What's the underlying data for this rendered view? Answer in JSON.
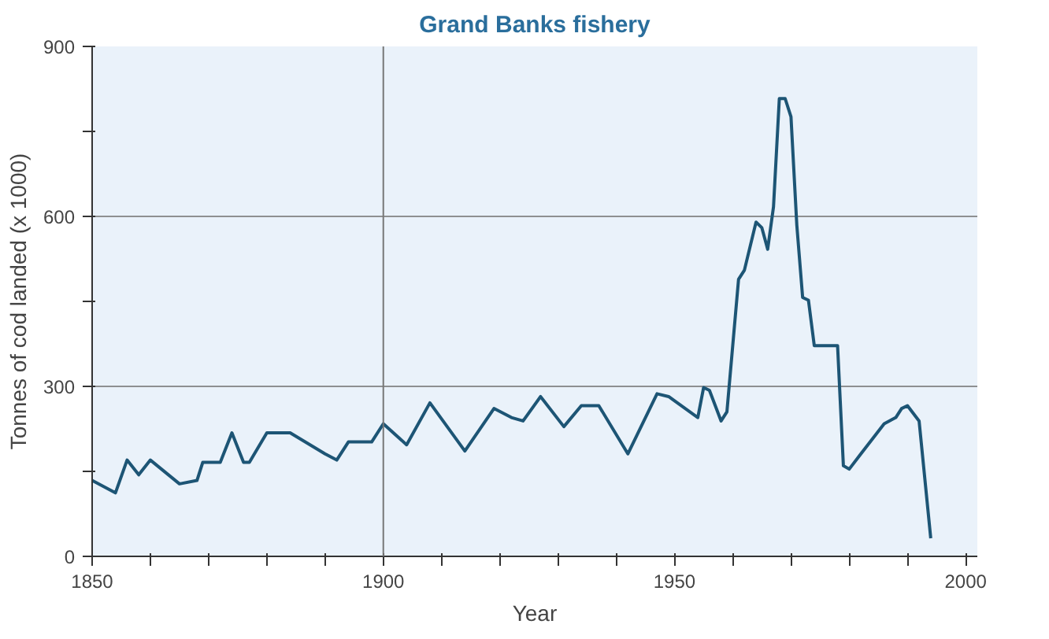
{
  "chart_data": {
    "type": "line",
    "title": "Grand Banks fishery",
    "xlabel": "Year",
    "ylabel": "Tonnes of cod landed (x 1000)",
    "x": [
      1850,
      1854,
      1856,
      1858,
      1860,
      1865,
      1868,
      1869,
      1872,
      1874,
      1876,
      1877,
      1880,
      1884,
      1890,
      1892,
      1894,
      1898,
      1900,
      1904,
      1908,
      1914,
      1919,
      1922,
      1924,
      1927,
      1931,
      1934,
      1937,
      1942,
      1947,
      1949,
      1954,
      1955,
      1956,
      1958,
      1959,
      1961,
      1962,
      1964,
      1965,
      1966,
      1967,
      1968,
      1969,
      1970,
      1971,
      1972,
      1973,
      1974,
      1978,
      1979,
      1980,
      1982,
      1986,
      1988,
      1989,
      1990,
      1992,
      1994
    ],
    "series": [
      {
        "color": "#1d5575",
        "values": [
          134,
          112,
          170,
          144,
          170,
          128,
          134,
          166,
          166,
          218,
          166,
          166,
          218,
          218,
          181,
          170,
          202,
          202,
          234,
          197,
          271,
          186,
          261,
          245,
          239,
          282,
          229,
          266,
          266,
          181,
          287,
          282,
          245,
          298,
          293,
          239,
          255,
          489,
          505,
          590,
          580,
          542,
          617,
          808,
          808,
          776,
          585,
          457,
          452,
          372,
          372,
          160,
          154,
          181,
          234,
          245,
          261,
          266,
          239,
          32
        ]
      }
    ],
    "xlim": [
      1850,
      2002
    ],
    "ylim": [
      0,
      900
    ],
    "xticks": [
      1850,
      {
        "value": 1860,
        "label": null
      },
      {
        "value": 1870,
        "label": null
      },
      {
        "value": 1880,
        "label": null
      },
      {
        "value": 1890,
        "label": null
      },
      1900,
      {
        "value": 1910,
        "label": null
      },
      {
        "value": 1920,
        "label": null
      },
      {
        "value": 1930,
        "label": null
      },
      {
        "value": 1940,
        "label": null
      },
      1950,
      {
        "value": 1960,
        "label": null
      },
      {
        "value": 1970,
        "label": null
      },
      {
        "value": 1980,
        "label": null
      },
      {
        "value": 1990,
        "label": null
      },
      2000
    ],
    "yticks": [
      0,
      {
        "value": 150,
        "label": null
      },
      300,
      {
        "value": 450,
        "label": null
      },
      600,
      {
        "value": 750,
        "label": null
      },
      900
    ],
    "grid": "y",
    "ref_lines": [
      {
        "axis": "x",
        "value": 1900
      }
    ],
    "line_style": "solid"
  }
}
